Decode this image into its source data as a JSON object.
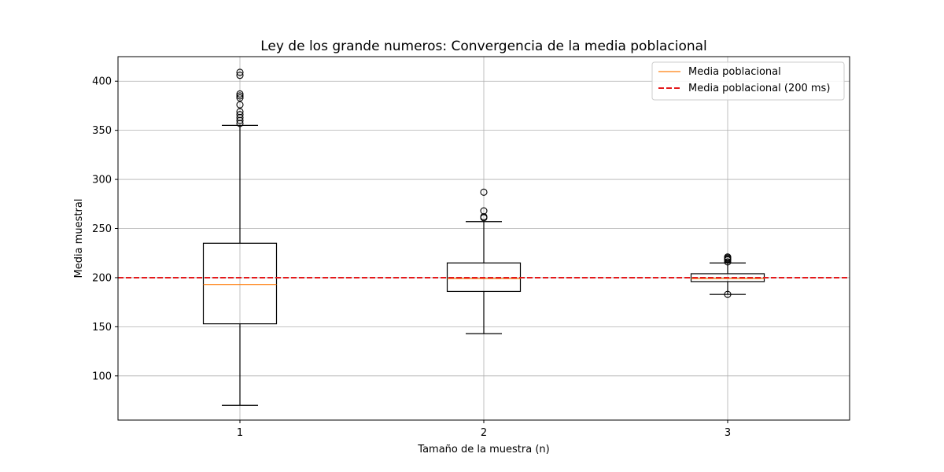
{
  "chart_data": {
    "type": "box",
    "title": "Ley de los grande numeros: Convergencia de la media poblacional",
    "xlabel": "Tamaño de la muestra (n)",
    "ylabel": "Media muestral",
    "categories": [
      "1",
      "2",
      "3"
    ],
    "ylim": [
      55,
      425
    ],
    "xlim": [
      0.5,
      3.5
    ],
    "yticks": [
      100,
      150,
      200,
      250,
      300,
      350,
      400
    ],
    "grid": true,
    "legend_position": "top-right",
    "reference_line": {
      "y": 200,
      "label": "Media poblacional (200 ms)",
      "color": "#e41a1c",
      "style": "dashed"
    },
    "median_legend_label": "Media poblacional",
    "median_color": "#ff7f0e",
    "boxes": [
      {
        "x": "1",
        "whisker_low": 70,
        "q1": 153,
        "median": 193,
        "q3": 235,
        "whisker_high": 355,
        "fliers": [
          357,
          360,
          363,
          366,
          369,
          376,
          383,
          385,
          387,
          406,
          409
        ]
      },
      {
        "x": "2",
        "whisker_low": 143,
        "q1": 186,
        "median": 199,
        "q3": 215,
        "whisker_high": 257,
        "fliers": [
          261,
          262,
          268,
          287
        ]
      },
      {
        "x": "3",
        "whisker_low": 183,
        "q1": 196,
        "median": 199,
        "q3": 204,
        "whisker_high": 215,
        "fliers": [
          183,
          216,
          218,
          219,
          220,
          221
        ]
      }
    ]
  }
}
